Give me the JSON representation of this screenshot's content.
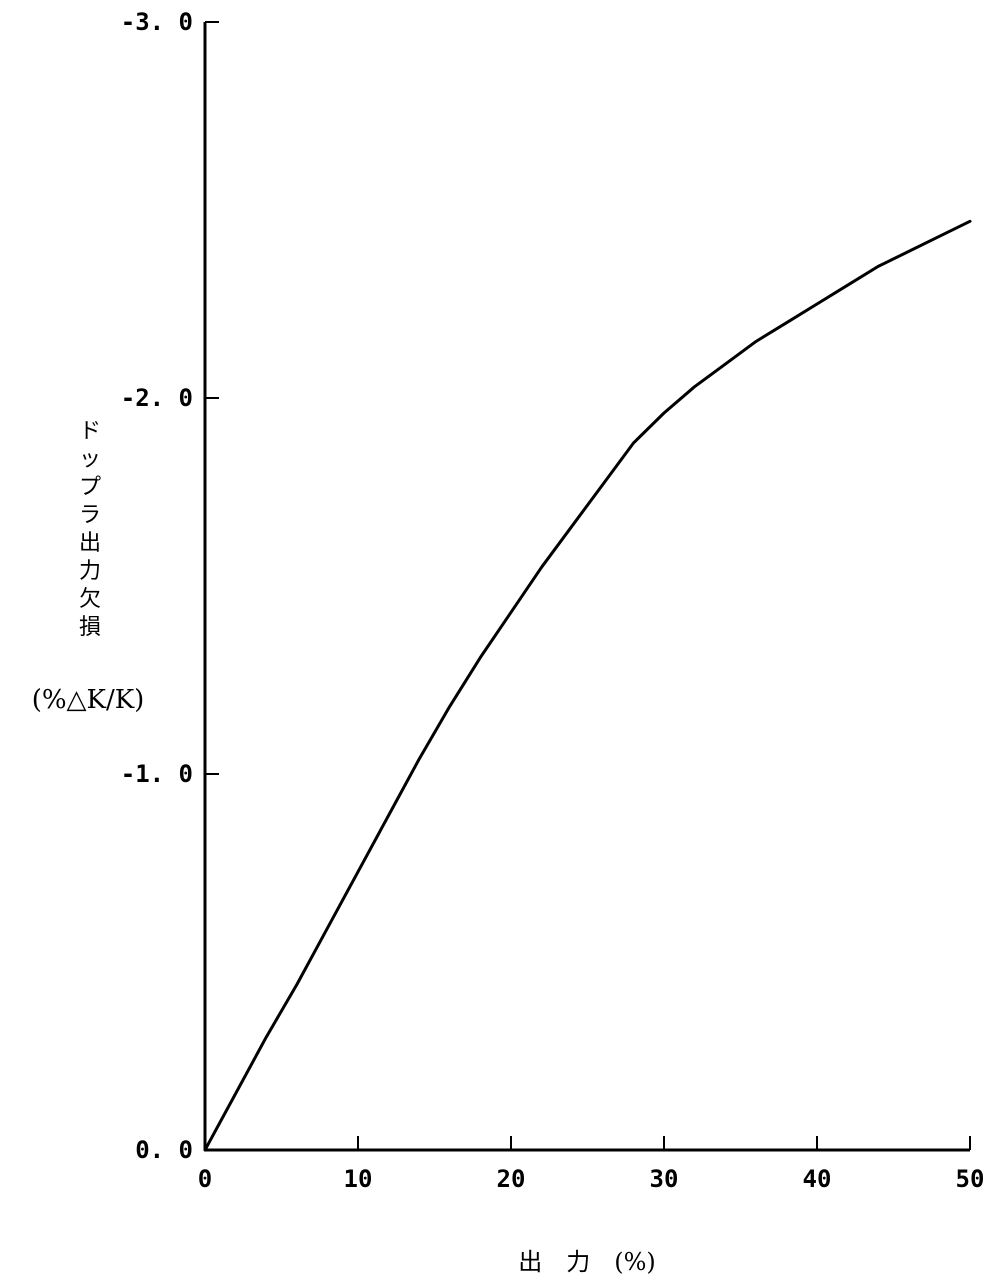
{
  "chart_data": {
    "type": "line",
    "title": "",
    "xlabel": "出 力 (%)",
    "ylabel": "ドップラ出力欠損",
    "ylabel_unit": "(%△K/K)",
    "xlim": [
      0,
      50
    ],
    "ylim": [
      0.0,
      -3.0
    ],
    "x_ticks": [
      0,
      10,
      20,
      30,
      40,
      50
    ],
    "x_tick_labels": [
      "0",
      "10",
      "20",
      "30",
      "40",
      "50"
    ],
    "y_ticks": [
      0.0,
      -1.0,
      -2.0,
      -3.0
    ],
    "y_tick_labels": [
      "0. 0",
      "-1. 0",
      "-2. 0",
      "-3. 0"
    ],
    "grid": false,
    "legend": "none",
    "series": [
      {
        "x": [
          0,
          2,
          4,
          6,
          8,
          10,
          12,
          14,
          16,
          18,
          20,
          22,
          24,
          26,
          28,
          30,
          32,
          34,
          36,
          38,
          40,
          42,
          44,
          46,
          48,
          50
        ],
        "y": [
          0.0,
          -0.15,
          -0.3,
          -0.44,
          -0.59,
          -0.74,
          -0.89,
          -1.04,
          -1.18,
          -1.31,
          -1.43,
          -1.55,
          -1.66,
          -1.77,
          -1.88,
          -1.96,
          -2.03,
          -2.09,
          -2.15,
          -2.2,
          -2.25,
          -2.3,
          -2.35,
          -2.39,
          -2.43,
          -2.47
        ],
        "color": "#000000"
      }
    ]
  }
}
